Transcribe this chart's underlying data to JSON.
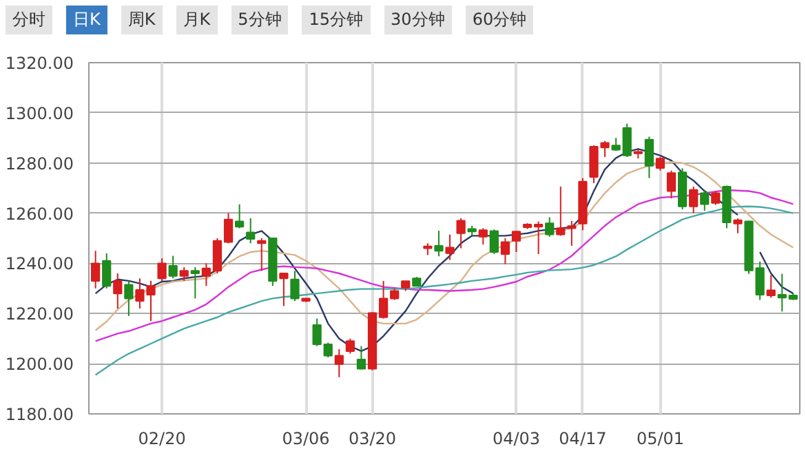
{
  "chart_data": {
    "type": "candlestick",
    "annotations": [
      "分时",
      "日K",
      "周K",
      "月K",
      "5分钟",
      "15分钟",
      "30分钟",
      "60分钟"
    ],
    "categories": [
      null,
      null,
      null,
      null,
      null,
      null,
      "02/20",
      null,
      null,
      null,
      null,
      null,
      null,
      null,
      null,
      null,
      null,
      null,
      null,
      "03/06",
      null,
      null,
      null,
      null,
      null,
      "03/20",
      null,
      null,
      null,
      null,
      null,
      null,
      null,
      null,
      null,
      null,
      null,
      null,
      "04/03",
      null,
      null,
      null,
      null,
      null,
      "04/17",
      null,
      null,
      null,
      null,
      null,
      null,
      "05/01",
      null,
      null,
      null,
      null,
      null,
      null,
      null,
      null,
      null,
      null,
      null,
      null
    ],
    "ohlc": [
      [
        1233,
        1245,
        1230,
        1240
      ],
      [
        1241,
        1244,
        1230,
        1231
      ],
      [
        1228,
        1236,
        1222,
        1233
      ],
      [
        1231.5,
        1233,
        1219,
        1226
      ],
      [
        1225,
        1234,
        1222,
        1229.4
      ],
      [
        1227.5,
        1233,
        1217,
        1231
      ],
      [
        1234,
        1242,
        1233,
        1240
      ],
      [
        1239,
        1243,
        1234,
        1235
      ],
      [
        1235,
        1238.5,
        1233,
        1237
      ],
      [
        1237,
        1238.5,
        1226,
        1236
      ],
      [
        1235,
        1240,
        1231,
        1238
      ],
      [
        1237,
        1250,
        1236,
        1249
      ],
      [
        1248.5,
        1260,
        1248,
        1257.5
      ],
      [
        1256.7,
        1263.5,
        1254,
        1254.6
      ],
      [
        1252.3,
        1258,
        1248,
        1249.7
      ],
      [
        1248,
        1250,
        1237,
        1249
      ],
      [
        1250,
        1250,
        1231,
        1233
      ],
      [
        1234,
        1236,
        1223,
        1236
      ],
      [
        1233.6,
        1237,
        1225,
        1226
      ],
      [
        1225,
        1226,
        1224.6,
        1226
      ],
      [
        1215.4,
        1218,
        1207,
        1207.7
      ],
      [
        1207.7,
        1208.4,
        1202.5,
        1203.2
      ],
      [
        1199.8,
        1205.8,
        1194.6,
        1203.2
      ],
      [
        1205,
        1210,
        1204,
        1209
      ],
      [
        1201.7,
        1207,
        1197.7,
        1198
      ],
      [
        1198,
        1220.6,
        1197.4,
        1220.2
      ],
      [
        1218.5,
        1233,
        1218,
        1226
      ],
      [
        1226,
        1230,
        1225.4,
        1229
      ],
      [
        1230.3,
        1233,
        1229,
        1232.9
      ],
      [
        1234,
        1234.6,
        1231,
        1231
      ],
      [
        1246,
        1248,
        1243.3,
        1246.8
      ],
      [
        1247,
        1253,
        1242.8,
        1245
      ],
      [
        1244,
        1251.5,
        1241.4,
        1246.3
      ],
      [
        1252,
        1258,
        1246,
        1257
      ],
      [
        1253.7,
        1255,
        1251,
        1252.7
      ],
      [
        1250.6,
        1254,
        1247.5,
        1253.2
      ],
      [
        1252.9,
        1253.5,
        1243.7,
        1244.5
      ],
      [
        1243.7,
        1250,
        1239.7,
        1248.5
      ],
      [
        1249,
        1253,
        1244.5,
        1252.7
      ],
      [
        1254.4,
        1256,
        1253.7,
        1255.5
      ],
      [
        1254.6,
        1256.7,
        1243.7,
        1255.5
      ],
      [
        1256,
        1258.4,
        1250.6,
        1251.5
      ],
      [
        1251.5,
        1270.6,
        1251,
        1254
      ],
      [
        1254,
        1256.9,
        1247,
        1254.9
      ],
      [
        1255.8,
        1274,
        1253.2,
        1272.6
      ],
      [
        1274.4,
        1287,
        1272,
        1286.5
      ],
      [
        1286.2,
        1288.8,
        1282.4,
        1288
      ],
      [
        1287,
        1290,
        1284.8,
        1285.3
      ],
      [
        1294,
        1295.7,
        1282.4,
        1283
      ],
      [
        1283.9,
        1285.3,
        1281.8,
        1284.4
      ],
      [
        1289.3,
        1290.5,
        1274,
        1278.9
      ],
      [
        1278,
        1282.4,
        1277,
        1281.8
      ],
      [
        1268.8,
        1277,
        1265.9,
        1276
      ],
      [
        1276.3,
        1277.9,
        1261.5,
        1262.7
      ],
      [
        1262.7,
        1270.6,
        1260,
        1269.3
      ],
      [
        1268,
        1269.3,
        1261,
        1263.6
      ],
      [
        1264.1,
        1268.8,
        1263.3,
        1268
      ],
      [
        1270.6,
        1271,
        1254,
        1256.3
      ],
      [
        1255.8,
        1257.9,
        1252,
        1257.2
      ],
      [
        1256.7,
        1257,
        1235.8,
        1237.2
      ],
      [
        1238.1,
        1240.7,
        1225.4,
        1227.5
      ],
      [
        1227.2,
        1235.3,
        1226.3,
        1229.3
      ],
      [
        1227.5,
        1235.8,
        1220.8,
        1226.3
      ],
      [
        1227.2,
        1228,
        1225.4,
        1225.8
      ]
    ],
    "series": [
      {
        "type": "line",
        "color": "#2b3a67",
        "values": [
          1228,
          1231.5,
          1233.6,
          1233,
          1232,
          1230.6,
          1232.7,
          1233,
          1234,
          1234.6,
          1235,
          1237.6,
          1242.8,
          1249,
          1251.5,
          1252.9,
          1249,
          1244,
          1238,
          1232,
          1226,
          1216,
          1210,
          1207,
          1205,
          1207,
          1211,
          1216,
          1221,
          1228,
          1234,
          1239,
          1243,
          1248,
          1251,
          1251,
          1251,
          1251,
          1251.5,
          1252,
          1253,
          1253.5,
          1254,
          1254.4,
          1259,
          1268.8,
          1277.5,
          1282,
          1284.4,
          1285.6,
          1284.4,
          1283,
          1281,
          1276,
          1273,
          1268.8,
          1266,
          1262.7,
          1259.3,
          null,
          1244.5,
          1236,
          1230.6,
          1228
        ]
      },
      {
        "type": "line",
        "color": "#d9b48a",
        "values": [
          1213.3,
          1216.8,
          1221.6,
          1225.4,
          1228,
          1229.8,
          1231.5,
          1232.7,
          1233.2,
          1233.6,
          1234,
          1236.7,
          1240.2,
          1242.8,
          1244.5,
          1245,
          1244.5,
          1244,
          1243.3,
          1241,
          1238,
          1234,
          1230,
          1225,
          1220,
          1217,
          1216,
          1216,
          1216,
          1217.6,
          1221,
          1225,
          1229,
          1233,
          1239,
          1243,
          1245.4,
          1247.5,
          1249.7,
          1250.5,
          1251.5,
          1252.3,
          1253,
          1254,
          1256.7,
          1262.7,
          1268,
          1272.3,
          1275.8,
          1277.5,
          1278.9,
          1279.7,
          1280.4,
          1280,
          1278.4,
          1275.8,
          1272.3,
          1268,
          1263.6,
          1259.3,
          1255,
          1251.5,
          1248.9,
          1246.3
        ]
      },
      {
        "type": "line",
        "color": "#d633d6",
        "values": [
          1209,
          1210.5,
          1212,
          1213,
          1214.5,
          1216,
          1217,
          1218.5,
          1220,
          1221.5,
          1223.7,
          1227,
          1230.6,
          1233.5,
          1236.4,
          1237.5,
          1238.5,
          1238.8,
          1238.5,
          1238.3,
          1238,
          1237,
          1236,
          1234.6,
          1233.2,
          1231.8,
          1230.6,
          1230.2,
          1229.8,
          1229.5,
          1229.4,
          1229.2,
          1229,
          1229.2,
          1229.4,
          1229.8,
          1230.6,
          1231.6,
          1232.7,
          1234.7,
          1236,
          1237.5,
          1240,
          1243,
          1247,
          1251,
          1255,
          1258.4,
          1261,
          1263.6,
          1265,
          1266.2,
          1266.5,
          1266.7,
          1267.3,
          1268,
          1268.6,
          1269.2,
          1269,
          1268.8,
          1268,
          1266.2,
          1265,
          1263.6
        ]
      },
      {
        "type": "line",
        "color": "#4aa8a8",
        "values": [
          1195.5,
          1198.5,
          1201.5,
          1204,
          1206,
          1208,
          1210,
          1212,
          1214,
          1215.5,
          1217,
          1218.5,
          1220.5,
          1222,
          1223.5,
          1225,
          1226,
          1226.6,
          1227,
          1227.5,
          1228,
          1228.5,
          1229,
          1229.5,
          1229.8,
          1229.8,
          1229.8,
          1229.8,
          1229.8,
          1230.2,
          1230.7,
          1231.2,
          1231.7,
          1232.3,
          1233,
          1233.5,
          1234,
          1234.8,
          1235.5,
          1236.3,
          1236.8,
          1237.2,
          1237.4,
          1237.6,
          1238.3,
          1239.3,
          1241,
          1242.8,
          1245.5,
          1248,
          1250.5,
          1253,
          1255.2,
          1257.5,
          1258.8,
          1260,
          1261,
          1262.2,
          1262.6,
          1262.7,
          1262.5,
          1261.9,
          1261,
          1260
        ]
      }
    ],
    "ylim": [
      1180,
      1320
    ],
    "yticks": [
      {
        "value": 1180,
        "label": "1180.00"
      },
      {
        "value": 1200,
        "label": "1200.00"
      },
      {
        "value": 1220,
        "label": "1220.00"
      },
      {
        "value": 1240,
        "label": "1240.00"
      },
      {
        "value": 1260,
        "label": "1260.00"
      },
      {
        "value": 1280,
        "label": "1280.00"
      },
      {
        "value": 1300,
        "label": "1300.00"
      },
      {
        "value": 1320,
        "label": "1320.00"
      }
    ],
    "grid": true,
    "marker": "none",
    "line_style": "solid"
  }
}
